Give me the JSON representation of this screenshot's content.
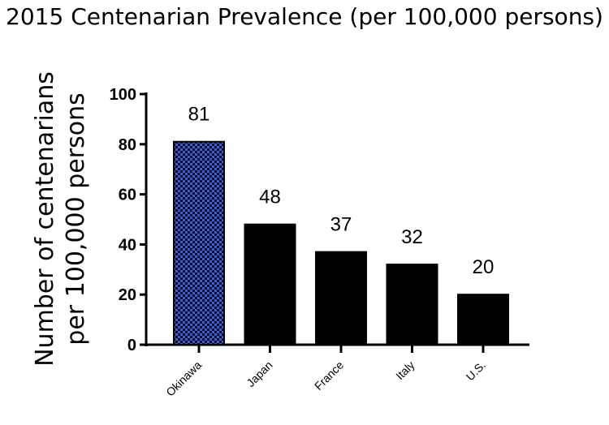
{
  "chart_data": {
    "type": "bar",
    "title": "2015 Centenarian Prevalence (per 100,000 persons)",
    "ylabel_lines": [
      "Number of centenarians",
      "per 100,000 persons"
    ],
    "xlabel": "",
    "categories": [
      "Okinawa",
      "Japan",
      "France",
      "Italy",
      "U.S."
    ],
    "values": [
      81,
      48,
      37,
      32,
      20
    ],
    "data_labels": [
      "81",
      "48",
      "37",
      "32",
      "20"
    ],
    "ylim": [
      0,
      100
    ],
    "yticks": [
      0,
      20,
      40,
      60,
      80,
      100
    ],
    "grid": false,
    "legend": "none",
    "colors": {
      "highlight_fill": "#3a5fcd",
      "highlight_pattern": "checkered",
      "bar_fill": "#000000",
      "axis": "#000000"
    }
  }
}
